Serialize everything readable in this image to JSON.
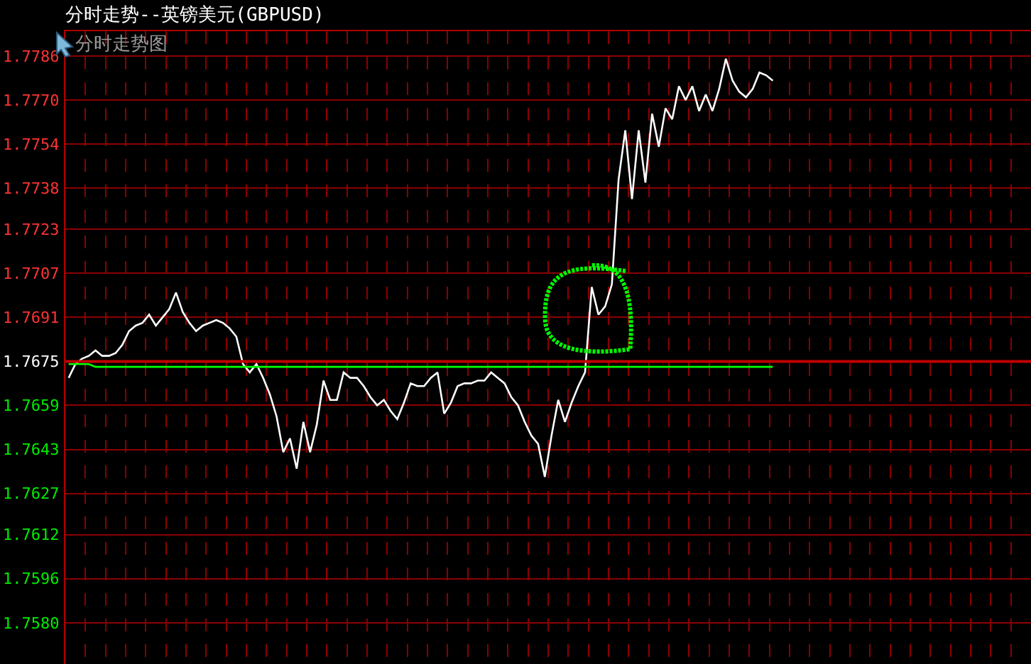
{
  "chart_data": {
    "type": "line",
    "title": "分时走势--英镑美元(GBPUSD)",
    "subtitle": "分时走势图",
    "categories": [
      null,
      null,
      null,
      null,
      null,
      null,
      null,
      null,
      null,
      null,
      null,
      null,
      null,
      null,
      null,
      null,
      null,
      null,
      null,
      null,
      null,
      null,
      null,
      null,
      null,
      null,
      null,
      null,
      null,
      null,
      null,
      null,
      null,
      null,
      null,
      null,
      null,
      null,
      null,
      null,
      null,
      null,
      null,
      null,
      null,
      null,
      null,
      null,
      null,
      null,
      null,
      null,
      null,
      null,
      null,
      null,
      null,
      null,
      null,
      null,
      null,
      null,
      null,
      null,
      null,
      null,
      null,
      null,
      null,
      null,
      null,
      null,
      null,
      null,
      null,
      null,
      null,
      null,
      null,
      null,
      null,
      null,
      null,
      null,
      null,
      null,
      null,
      null,
      null,
      null,
      null,
      null,
      null,
      null,
      null,
      null,
      null,
      null,
      null,
      null,
      null,
      null,
      null,
      null,
      null,
      null,
      null,
      null,
      null,
      null,
      null,
      null,
      null,
      null,
      null,
      null,
      null,
      null,
      null,
      null,
      null,
      null,
      null,
      null,
      null,
      null,
      null,
      null,
      null,
      null,
      null,
      null,
      null,
      null,
      null,
      null,
      null,
      null,
      null,
      null,
      null,
      null,
      null,
      null
    ],
    "series": [
      {
        "color": "#ffffff",
        "values": [
          1.7669,
          1.7674,
          1.7676,
          1.7677,
          1.7679,
          1.7677,
          1.7677,
          1.7678,
          1.7681,
          1.7686,
          1.7688,
          1.7689,
          1.7692,
          1.7688,
          1.7691,
          1.7694,
          1.77,
          1.7693,
          1.7689,
          1.7686,
          1.7688,
          1.7689,
          1.769,
          1.7689,
          1.7687,
          1.7684,
          1.7674,
          1.7671,
          1.7674,
          1.7669,
          1.7663,
          1.7655,
          1.7642,
          1.7647,
          1.7636,
          1.7653,
          1.7642,
          1.7652,
          1.7668,
          1.7661,
          1.7661,
          1.7671,
          1.7669,
          1.7669,
          1.7666,
          1.7662,
          1.7659,
          1.7661,
          1.7657,
          1.7654,
          1.766,
          1.7667,
          1.7666,
          1.7666,
          1.7669,
          1.7671,
          1.7656,
          1.766,
          1.7666,
          1.7667,
          1.7667,
          1.7668,
          1.7668,
          1.7671,
          1.7669,
          1.7667,
          1.7662,
          1.7659,
          1.7653,
          1.7648,
          1.7645,
          1.7633,
          1.7648,
          1.7661,
          1.7653,
          1.766,
          1.7666,
          1.7671,
          1.7702,
          1.7692,
          1.7695,
          1.7703,
          1.7741,
          1.7759,
          1.7734,
          1.7759,
          1.774,
          1.7765,
          1.7753,
          1.7767,
          1.7763,
          1.7775,
          1.777,
          1.7775,
          1.7766,
          1.7772,
          1.7766,
          1.7774,
          1.7785,
          1.7777,
          1.7773,
          1.7771,
          1.7774,
          1.778,
          1.7779,
          1.7777,
          null,
          null,
          null,
          null,
          null,
          null,
          null,
          null,
          null,
          null,
          null,
          null,
          null,
          null,
          null,
          null,
          null,
          null,
          null,
          null,
          null,
          null,
          null,
          null,
          null,
          null,
          null,
          null,
          null,
          null,
          null,
          null,
          null,
          null,
          null,
          null,
          null,
          null
        ]
      },
      {
        "color": "#00ff00",
        "values": [
          1.7674,
          1.7674,
          1.7674,
          1.7674,
          1.7673,
          1.7673,
          1.7673,
          1.7673,
          1.7673,
          1.7673,
          1.7673,
          1.7673,
          1.7673,
          1.7673,
          1.7673,
          1.7673,
          1.7673,
          1.7673,
          1.7673,
          1.7673,
          1.7673,
          1.7673,
          1.7673,
          1.7673,
          1.7673,
          1.7673,
          1.7673,
          1.7673,
          1.7673,
          1.7673,
          1.7673,
          1.7673,
          1.7673,
          1.7673,
          1.7673,
          1.7673,
          1.7673,
          1.7673,
          1.7673,
          1.7673,
          1.7673,
          1.7673,
          1.7673,
          1.7673,
          1.7673,
          1.7673,
          1.7673,
          1.7673,
          1.7673,
          1.7673,
          1.7673,
          1.7673,
          1.7673,
          1.7673,
          1.7673,
          1.7673,
          1.7673,
          1.7673,
          1.7673,
          1.7673,
          1.7673,
          1.7673,
          1.7673,
          1.7673,
          1.7673,
          1.7673,
          1.7673,
          1.7673,
          1.7673,
          1.7673,
          1.7673,
          1.7673,
          1.7673,
          1.7673,
          1.7673,
          1.7673,
          1.7673,
          1.7673,
          1.7673,
          1.7673,
          1.7673,
          1.7673,
          1.7673,
          1.7673,
          1.7673,
          1.7673,
          1.7673,
          1.7673,
          1.7673,
          1.7673,
          1.7673,
          1.7673,
          1.7673,
          1.7673,
          1.7673,
          1.7673,
          1.7673,
          1.7673,
          1.7673,
          1.7673,
          1.7673,
          1.7673,
          1.7673,
          1.7673,
          1.7673,
          1.7673,
          null,
          null,
          null,
          null,
          null,
          null,
          null,
          null,
          null,
          null,
          null,
          null,
          null,
          null,
          null,
          null,
          null,
          null,
          null,
          null,
          null,
          null,
          null,
          null,
          null,
          null,
          null,
          null,
          null,
          null,
          null,
          null,
          null,
          null,
          null,
          null,
          null,
          null
        ]
      }
    ],
    "ylim": [
      1.7565,
      1.7795
    ],
    "yticks": [
      1.7786,
      {
        "value": 1.777,
        "label": "1.7770"
      },
      1.7754,
      1.7738,
      1.7723,
      1.7707,
      1.7691,
      1.7675,
      1.7659,
      1.7643,
      1.7627,
      1.7612,
      1.7596,
      {
        "value": 1.758,
        "label": "1.7580"
      }
    ],
    "ref_lines": [
      {
        "axis": "y",
        "value": 1.7675,
        "color": "#c00000"
      }
    ],
    "grid": true,
    "tick_labels": "y"
  }
}
